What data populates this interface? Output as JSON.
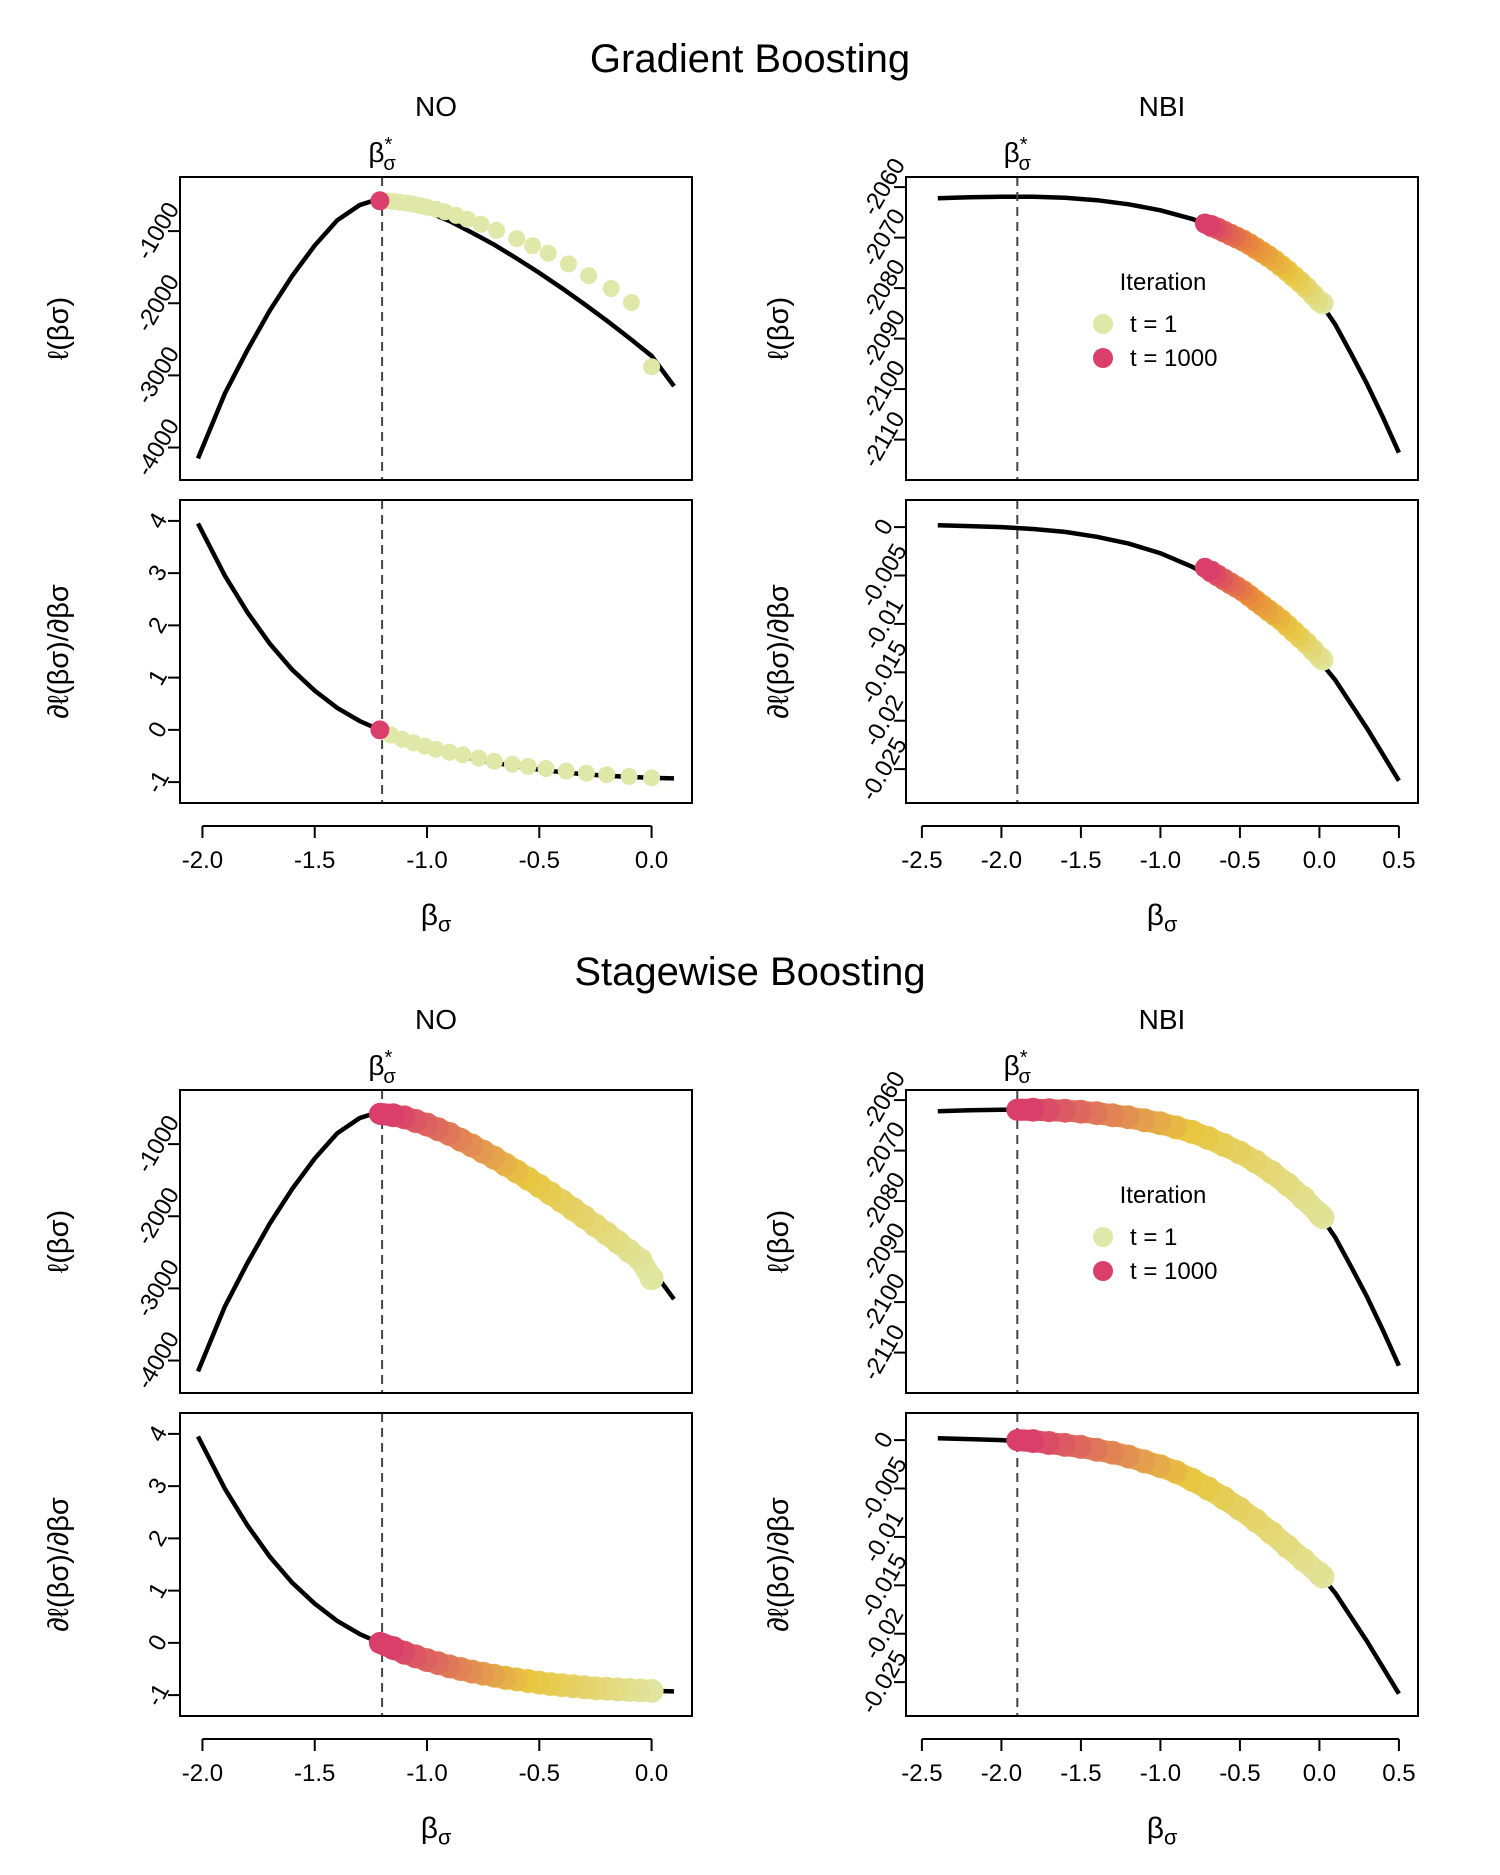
{
  "chart_data": [
    {
      "type": "line",
      "block_title": "Gradient Boosting",
      "column_title": "NO",
      "beta_star_label": "β*σ",
      "beta_star": -1.2,
      "xlim": [
        -2.1,
        0.18
      ],
      "xticks": [
        -2.0,
        -1.5,
        -1.0,
        -0.5,
        0.0
      ],
      "xtick_labels": [
        "-2.0",
        "-1.5",
        "-1.0",
        "-0.5",
        "0.0"
      ],
      "xlabel": "βσ",
      "top": {
        "ylabel": "ℓ(βσ)",
        "ylim": [
          -4450,
          -250
        ],
        "yticks": [
          -1000,
          -2000,
          -3000,
          -4000
        ],
        "ytick_labels": [
          "-1000",
          "-2000",
          "-3000",
          "-4000"
        ],
        "curve_x": [
          -2.02,
          -1.9,
          -1.8,
          -1.7,
          -1.6,
          -1.5,
          -1.4,
          -1.3,
          -1.25,
          -1.21,
          -1.1,
          -1.0,
          -0.9,
          -0.8,
          -0.7,
          -0.6,
          -0.5,
          -0.4,
          -0.3,
          -0.2,
          -0.1,
          0.0,
          0.1
        ],
        "curve_y": [
          -4150,
          -3250,
          -2650,
          -2100,
          -1620,
          -1200,
          -850,
          -640,
          -590,
          -580,
          -630,
          -730,
          -860,
          -1020,
          -1190,
          -1380,
          -1580,
          -1790,
          -2010,
          -2240,
          -2480,
          -2730,
          -3150
        ],
        "iterations_x": [
          -1.21,
          -1.18,
          -1.15,
          -1.12,
          -1.09,
          -1.06,
          -1.03,
          -1.0,
          -0.96,
          -0.92,
          -0.87,
          -0.82,
          -0.76,
          -0.69,
          -0.6,
          -0.53,
          -0.46,
          -0.37,
          -0.28,
          -0.18,
          -0.09,
          0.0
        ],
        "iterations_y": [
          -580,
          -583,
          -590,
          -600,
          -612,
          -628,
          -646,
          -668,
          -698,
          -733,
          -782,
          -836,
          -905,
          -990,
          -1105,
          -1203,
          -1306,
          -1455,
          -1617,
          -1796,
          -1990,
          -2880
        ],
        "first_iteration": "t = 1",
        "last_iteration": "t = 1000"
      },
      "bottom": {
        "ylabel": "∂ℓ(βσ)/∂βσ",
        "ylim": [
          -1.4,
          4.4
        ],
        "yticks": [
          4,
          3,
          2,
          1,
          0,
          -1
        ],
        "ytick_labels": [
          "4",
          "3",
          "2",
          "1",
          "0",
          "-1"
        ],
        "curve_x": [
          -2.02,
          -1.9,
          -1.8,
          -1.7,
          -1.6,
          -1.5,
          -1.4,
          -1.3,
          -1.21,
          -1.1,
          -1.0,
          -0.9,
          -0.8,
          -0.7,
          -0.6,
          -0.5,
          -0.4,
          -0.3,
          -0.2,
          -0.1,
          0.0,
          0.1
        ],
        "curve_y": [
          3.95,
          2.95,
          2.25,
          1.65,
          1.15,
          0.75,
          0.42,
          0.17,
          0.0,
          -0.19,
          -0.33,
          -0.45,
          -0.55,
          -0.63,
          -0.7,
          -0.76,
          -0.81,
          -0.85,
          -0.88,
          -0.9,
          -0.92,
          -0.93
        ],
        "iterations_x": [
          -1.21,
          -1.16,
          -1.11,
          -1.06,
          -1.01,
          -0.96,
          -0.9,
          -0.84,
          -0.77,
          -0.7,
          -0.62,
          -0.55,
          -0.47,
          -0.38,
          -0.29,
          -0.2,
          -0.1,
          0.0
        ],
        "iterations_y": [
          0.0,
          -0.1,
          -0.18,
          -0.25,
          -0.31,
          -0.37,
          -0.43,
          -0.48,
          -0.54,
          -0.6,
          -0.66,
          -0.7,
          -0.74,
          -0.79,
          -0.83,
          -0.86,
          -0.89,
          -0.92
        ]
      }
    },
    {
      "type": "line",
      "block_title": "Gradient Boosting",
      "column_title": "NBI",
      "beta_star_label": "β*σ",
      "beta_star": -1.9,
      "xlim": [
        -2.6,
        0.62
      ],
      "xticks": [
        -2.5,
        -2.0,
        -1.5,
        -1.0,
        -0.5,
        0.0,
        0.5
      ],
      "xtick_labels": [
        "-2.5",
        "-2.0",
        "-1.5",
        "-1.0",
        "-0.5",
        "0.0",
        "0.5"
      ],
      "xlabel": "βσ",
      "legend": {
        "title": "Iteration",
        "items": [
          "t = 1",
          "t = 1000"
        ],
        "colors": [
          "#dfe8a8",
          "#d93f6a"
        ]
      },
      "top": {
        "ylabel": "ℓ(βσ)",
        "ylim": [
          -2118,
          -2058
        ],
        "yticks": [
          -2060,
          -2070,
          -2080,
          -2090,
          -2100,
          -2110
        ],
        "ytick_labels": [
          "-2060",
          "-2070",
          "-2080",
          "-2090",
          "-2100",
          "-2110"
        ],
        "curve_x": [
          -2.4,
          -2.2,
          -2.0,
          -1.8,
          -1.6,
          -1.4,
          -1.2,
          -1.0,
          -0.8,
          -0.7,
          -0.6,
          -0.5,
          -0.4,
          -0.3,
          -0.2,
          -0.1,
          0.0,
          0.1,
          0.2,
          0.3,
          0.4,
          0.5
        ],
        "curve_y": [
          -2062.2,
          -2062.0,
          -2061.9,
          -2061.9,
          -2062.1,
          -2062.6,
          -2063.4,
          -2064.6,
          -2066.3,
          -2067.5,
          -2068.9,
          -2070.4,
          -2072.2,
          -2074.3,
          -2076.7,
          -2079.4,
          -2082.6,
          -2087.2,
          -2093.0,
          -2099.0,
          -2105.6,
          -2112.6
        ],
        "iterations_x": [
          -0.72,
          -0.68,
          -0.64,
          -0.6,
          -0.56,
          -0.52,
          -0.48,
          -0.44,
          -0.4,
          -0.36,
          -0.32,
          -0.28,
          -0.24,
          -0.2,
          -0.16,
          -0.12,
          -0.08,
          -0.04,
          0.0,
          0.02
        ],
        "iterations_y": [
          -2067.2,
          -2067.7,
          -2068.2,
          -2068.8,
          -2069.4,
          -2070.0,
          -2070.6,
          -2071.3,
          -2072.1,
          -2072.9,
          -2073.7,
          -2074.6,
          -2075.6,
          -2076.6,
          -2077.7,
          -2078.8,
          -2080.0,
          -2081.3,
          -2082.6,
          -2083.0
        ]
      },
      "bottom": {
        "ylabel": "∂ℓ(βσ)/∂βσ",
        "ylim": [
          -0.0285,
          0.0028
        ],
        "yticks": [
          0,
          -0.005,
          -0.01,
          -0.015,
          -0.02,
          -0.025
        ],
        "ytick_labels": [
          "0",
          "-0.005",
          "-0.01",
          "-0.015",
          "-0.02",
          "-0.025"
        ],
        "curve_x": [
          -2.4,
          -2.2,
          -2.0,
          -1.8,
          -1.6,
          -1.4,
          -1.2,
          -1.0,
          -0.8,
          -0.7,
          -0.6,
          -0.5,
          -0.4,
          -0.3,
          -0.2,
          -0.1,
          0.0,
          0.1,
          0.2,
          0.3,
          0.4,
          0.5
        ],
        "curve_y": [
          0.0002,
          0.0001,
          0.0,
          -0.0002,
          -0.0005,
          -0.001,
          -0.0017,
          -0.0027,
          -0.0041,
          -0.005,
          -0.006,
          -0.0071,
          -0.0083,
          -0.0096,
          -0.011,
          -0.0124,
          -0.0138,
          -0.0158,
          -0.0183,
          -0.0208,
          -0.0235,
          -0.0262
        ],
        "iterations_x": [
          -0.72,
          -0.68,
          -0.64,
          -0.6,
          -0.56,
          -0.52,
          -0.48,
          -0.44,
          -0.4,
          -0.36,
          -0.32,
          -0.28,
          -0.24,
          -0.2,
          -0.16,
          -0.12,
          -0.08,
          -0.04,
          0.0,
          0.02
        ],
        "iterations_y": [
          -0.0042,
          -0.0046,
          -0.005,
          -0.0054,
          -0.0058,
          -0.0062,
          -0.0066,
          -0.0071,
          -0.0076,
          -0.0081,
          -0.0086,
          -0.0091,
          -0.0096,
          -0.0102,
          -0.0108,
          -0.0114,
          -0.012,
          -0.0127,
          -0.0134,
          -0.0137
        ]
      }
    },
    {
      "type": "line",
      "block_title": "Stagewise Boosting",
      "column_title": "NO",
      "beta_star_label": "β*σ",
      "beta_star": -1.2,
      "xlim": [
        -2.1,
        0.18
      ],
      "xticks": [
        -2.0,
        -1.5,
        -1.0,
        -0.5,
        0.0
      ],
      "xtick_labels": [
        "-2.0",
        "-1.5",
        "-1.0",
        "-0.5",
        "0.0"
      ],
      "xlabel": "βσ",
      "top": {
        "ylabel": "ℓ(βσ)",
        "ylim": [
          -4450,
          -250
        ],
        "yticks": [
          -1000,
          -2000,
          -3000,
          -4000
        ],
        "ytick_labels": [
          "-1000",
          "-2000",
          "-3000",
          "-4000"
        ],
        "curve_x": [
          -2.02,
          -1.9,
          -1.8,
          -1.7,
          -1.6,
          -1.5,
          -1.4,
          -1.3,
          -1.25,
          -1.21,
          -1.1,
          -1.0,
          -0.9,
          -0.8,
          -0.7,
          -0.6,
          -0.5,
          -0.4,
          -0.3,
          -0.2,
          -0.1,
          0.0,
          0.1
        ],
        "curve_y": [
          -4150,
          -3250,
          -2650,
          -2100,
          -1620,
          -1200,
          -850,
          -640,
          -590,
          -580,
          -630,
          -730,
          -860,
          -1020,
          -1190,
          -1380,
          -1580,
          -1790,
          -2010,
          -2240,
          -2480,
          -2730,
          -3150
        ],
        "iterations_x": [
          -1.21,
          -1.15,
          -1.1,
          -1.05,
          -1.0,
          -0.95,
          -0.9,
          -0.85,
          -0.8,
          -0.75,
          -0.7,
          -0.65,
          -0.6,
          -0.55,
          -0.5,
          -0.45,
          -0.4,
          -0.35,
          -0.3,
          -0.25,
          -0.2,
          -0.15,
          -0.1,
          -0.05,
          0.0
        ],
        "iterations_y": [
          -580,
          -600,
          -630,
          -680,
          -730,
          -795,
          -860,
          -940,
          -1020,
          -1105,
          -1190,
          -1285,
          -1380,
          -1480,
          -1580,
          -1685,
          -1790,
          -1900,
          -2010,
          -2125,
          -2240,
          -2360,
          -2480,
          -2605,
          -2860
        ]
      },
      "bottom": {
        "ylabel": "∂ℓ(βσ)/∂βσ",
        "ylim": [
          -1.4,
          4.4
        ],
        "yticks": [
          4,
          3,
          2,
          1,
          0,
          -1
        ],
        "ytick_labels": [
          "4",
          "3",
          "2",
          "1",
          "0",
          "-1"
        ],
        "curve_x": [
          -2.02,
          -1.9,
          -1.8,
          -1.7,
          -1.6,
          -1.5,
          -1.4,
          -1.3,
          -1.21,
          -1.1,
          -1.0,
          -0.9,
          -0.8,
          -0.7,
          -0.6,
          -0.5,
          -0.4,
          -0.3,
          -0.2,
          -0.1,
          0.0,
          0.1
        ],
        "curve_y": [
          3.95,
          2.95,
          2.25,
          1.65,
          1.15,
          0.75,
          0.42,
          0.17,
          0.0,
          -0.19,
          -0.33,
          -0.45,
          -0.55,
          -0.63,
          -0.7,
          -0.76,
          -0.81,
          -0.85,
          -0.88,
          -0.9,
          -0.92,
          -0.93
        ],
        "iterations_x": [
          -1.21,
          -1.15,
          -1.1,
          -1.05,
          -1.0,
          -0.95,
          -0.9,
          -0.85,
          -0.8,
          -0.75,
          -0.7,
          -0.65,
          -0.6,
          -0.55,
          -0.5,
          -0.45,
          -0.4,
          -0.35,
          -0.3,
          -0.25,
          -0.2,
          -0.15,
          -0.1,
          -0.05,
          0.0
        ],
        "iterations_y": [
          0.0,
          -0.1,
          -0.19,
          -0.26,
          -0.33,
          -0.39,
          -0.45,
          -0.5,
          -0.55,
          -0.59,
          -0.63,
          -0.67,
          -0.7,
          -0.73,
          -0.76,
          -0.79,
          -0.81,
          -0.83,
          -0.85,
          -0.87,
          -0.88,
          -0.89,
          -0.9,
          -0.91,
          -0.92
        ]
      }
    },
    {
      "type": "line",
      "block_title": "Stagewise Boosting",
      "column_title": "NBI",
      "beta_star_label": "β*σ",
      "beta_star": -1.9,
      "xlim": [
        -2.6,
        0.62
      ],
      "xticks": [
        -2.5,
        -2.0,
        -1.5,
        -1.0,
        -0.5,
        0.0,
        0.5
      ],
      "xtick_labels": [
        "-2.5",
        "-2.0",
        "-1.5",
        "-1.0",
        "-0.5",
        "0.0",
        "0.5"
      ],
      "xlabel": "βσ",
      "legend": {
        "title": "Iteration",
        "items": [
          "t = 1",
          "t = 1000"
        ],
        "colors": [
          "#dfe8a8",
          "#d93f6a"
        ]
      },
      "top": {
        "ylabel": "ℓ(βσ)",
        "ylim": [
          -2118,
          -2058
        ],
        "yticks": [
          -2060,
          -2070,
          -2080,
          -2090,
          -2100,
          -2110
        ],
        "ytick_labels": [
          "-2060",
          "-2070",
          "-2080",
          "-2090",
          "-2100",
          "-2110"
        ],
        "curve_x": [
          -2.4,
          -2.2,
          -2.0,
          -1.8,
          -1.6,
          -1.4,
          -1.2,
          -1.0,
          -0.8,
          -0.7,
          -0.6,
          -0.5,
          -0.4,
          -0.3,
          -0.2,
          -0.1,
          0.0,
          0.1,
          0.2,
          0.3,
          0.4,
          0.5
        ],
        "curve_y": [
          -2062.2,
          -2062.0,
          -2061.9,
          -2061.9,
          -2062.1,
          -2062.6,
          -2063.4,
          -2064.6,
          -2066.3,
          -2067.5,
          -2068.9,
          -2070.4,
          -2072.2,
          -2074.3,
          -2076.7,
          -2079.4,
          -2082.6,
          -2087.2,
          -2093.0,
          -2099.0,
          -2105.6,
          -2112.6
        ],
        "iterations_x": [
          -1.9,
          -1.8,
          -1.7,
          -1.6,
          -1.5,
          -1.4,
          -1.3,
          -1.2,
          -1.1,
          -1.0,
          -0.9,
          -0.8,
          -0.7,
          -0.6,
          -0.5,
          -0.4,
          -0.3,
          -0.2,
          -0.1,
          0.0,
          0.02
        ],
        "iterations_y": [
          -2061.9,
          -2061.9,
          -2062.0,
          -2062.1,
          -2062.3,
          -2062.6,
          -2063.0,
          -2063.4,
          -2064.0,
          -2064.6,
          -2065.4,
          -2066.3,
          -2067.5,
          -2068.9,
          -2070.4,
          -2072.2,
          -2074.3,
          -2076.7,
          -2079.4,
          -2082.6,
          -2083.2
        ]
      },
      "bottom": {
        "ylabel": "∂ℓ(βσ)/∂βσ",
        "ylim": [
          -0.0285,
          0.0028
        ],
        "yticks": [
          0,
          -0.005,
          -0.01,
          -0.015,
          -0.02,
          -0.025
        ],
        "ytick_labels": [
          "0",
          "-0.005",
          "-0.01",
          "-0.015",
          "-0.02",
          "-0.025"
        ],
        "curve_x": [
          -2.4,
          -2.2,
          -2.0,
          -1.8,
          -1.6,
          -1.4,
          -1.2,
          -1.0,
          -0.8,
          -0.7,
          -0.6,
          -0.5,
          -0.4,
          -0.3,
          -0.2,
          -0.1,
          0.0,
          0.1,
          0.2,
          0.3,
          0.4,
          0.5
        ],
        "curve_y": [
          0.0002,
          0.0001,
          0.0,
          -0.0002,
          -0.0005,
          -0.001,
          -0.0017,
          -0.0027,
          -0.0041,
          -0.005,
          -0.006,
          -0.0071,
          -0.0083,
          -0.0096,
          -0.011,
          -0.0124,
          -0.0138,
          -0.0158,
          -0.0183,
          -0.0208,
          -0.0235,
          -0.0262
        ],
        "iterations_x": [
          -1.9,
          -1.8,
          -1.7,
          -1.6,
          -1.5,
          -1.4,
          -1.3,
          -1.2,
          -1.1,
          -1.0,
          -0.9,
          -0.8,
          -0.7,
          -0.6,
          -0.5,
          -0.4,
          -0.3,
          -0.2,
          -0.1,
          0.0,
          0.02
        ],
        "iterations_y": [
          0.0,
          -0.0001,
          -0.0003,
          -0.0005,
          -0.0007,
          -0.001,
          -0.0013,
          -0.0017,
          -0.0022,
          -0.0027,
          -0.0033,
          -0.0041,
          -0.005,
          -0.006,
          -0.0071,
          -0.0083,
          -0.0096,
          -0.011,
          -0.0124,
          -0.0138,
          -0.0141
        ]
      }
    }
  ],
  "titles": {
    "gradient": "Gradient Boosting",
    "stagewise": "Stagewise Boosting"
  },
  "iteration_colors": {
    "start": "#dfe8a8",
    "middle": "#e8c640",
    "late": "#e98a3a",
    "end": "#d93f6a"
  }
}
